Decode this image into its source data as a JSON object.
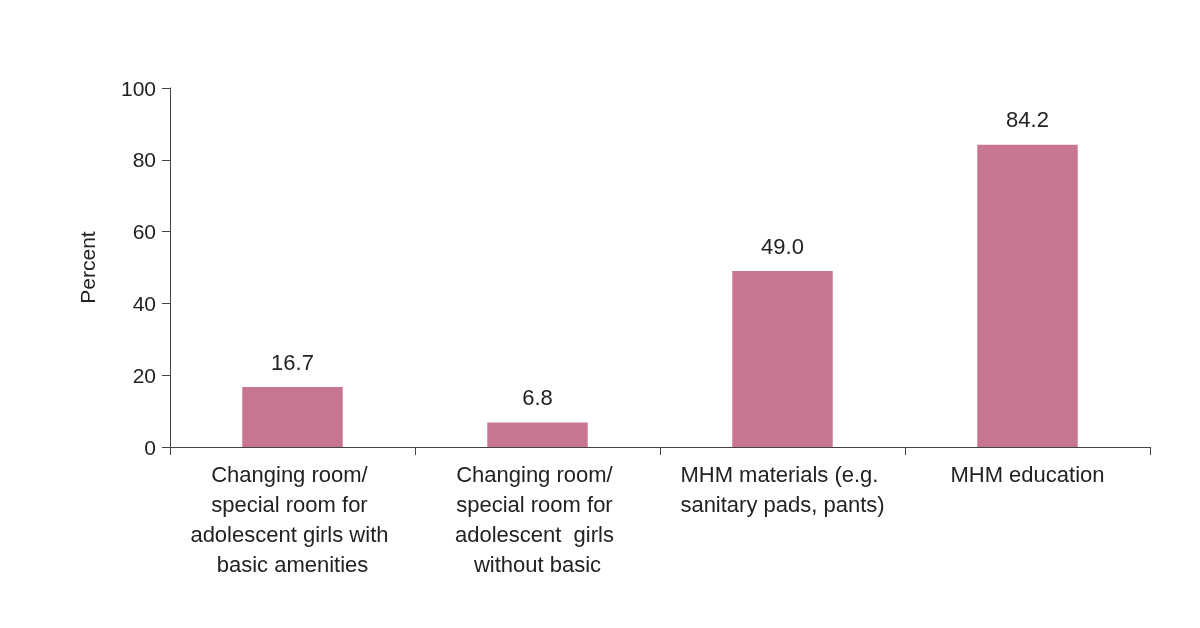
{
  "chart_data": {
    "type": "bar",
    "ylabel": "Percent",
    "categories": [
      "Changing room/ special room for adolescent girls with basic amenities",
      "Changing room/ special room for adolescent  girls without basic",
      "MHM materials (e.g. sanitary pads, pants)",
      "MHM education"
    ],
    "values": [
      16.7,
      6.8,
      49.0,
      84.2
    ],
    "value_labels": [
      "16.7",
      "6.8",
      "49.0",
      "84.2"
    ],
    "color": "#c8768f",
    "ylim": [
      0,
      100
    ],
    "yticks": [
      0,
      20,
      40,
      60,
      80,
      100
    ],
    "grid": false
  }
}
